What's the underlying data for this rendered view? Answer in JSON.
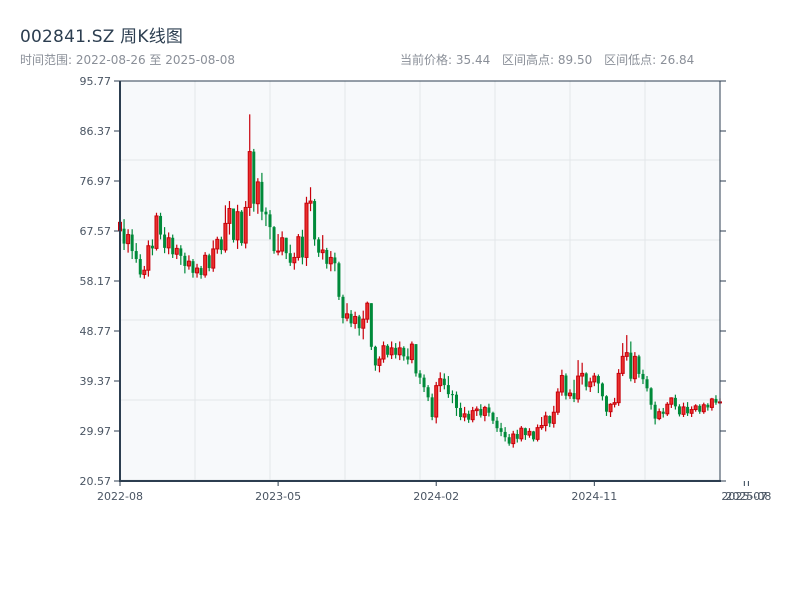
{
  "header": {
    "title": "002841.SZ 周K线图",
    "range_label": "时间范围: 2022-08-26 至 2025-08-08",
    "current_price": "当前价格: 35.44",
    "period_high": "区间高点: 89.50",
    "period_low": "区间低点: 26.84"
  },
  "colors": {
    "up_border": "#c8000a",
    "up_fill": "#e8302e",
    "down": "#008a3a",
    "axis": "#2c3e50",
    "grid": "#e3e6ea",
    "plot_bg": "#f7f9fb"
  },
  "chart_data": {
    "type": "candlestick",
    "title": "002841.SZ 周K线图",
    "subtitle": "时间范围: 2022-08-26 至 2025-08-08",
    "xlabel": "",
    "ylabel": "",
    "ylim": [
      20.57,
      95.77
    ],
    "y_ticks": [
      "95.77",
      "86.37",
      "76.97",
      "67.57",
      "58.17",
      "48.77",
      "39.37",
      "29.97",
      "20.57"
    ],
    "x_ticks": [
      "2022-08",
      "2023-05",
      "2024-02",
      "2024-11",
      "2025-07",
      "2025-08"
    ],
    "x_tick_positions": [
      0,
      39,
      78,
      117,
      154,
      155
    ],
    "legend": [],
    "grid": true,
    "summary": {
      "current": 35.44,
      "high": 89.5,
      "low": 26.84
    },
    "candles": [
      [
        67.6,
        69.2,
        65.0,
        69.8
      ],
      [
        68.0,
        65.2,
        64.0,
        69.8
      ],
      [
        65.2,
        66.9,
        63.5,
        67.9
      ],
      [
        66.9,
        63.8,
        62.3,
        67.9
      ],
      [
        63.8,
        62.3,
        61.6,
        65.3
      ],
      [
        62.3,
        59.4,
        58.8,
        63.2
      ],
      [
        59.4,
        60.2,
        58.6,
        61.0
      ],
      [
        60.2,
        64.8,
        59.0,
        65.8
      ],
      [
        64.8,
        64.3,
        63.0,
        66.0
      ],
      [
        64.3,
        70.4,
        63.9,
        71.0
      ],
      [
        70.4,
        66.9,
        66.0,
        71.0
      ],
      [
        66.9,
        64.4,
        63.4,
        68.3
      ],
      [
        64.4,
        66.3,
        63.2,
        67.3
      ],
      [
        66.3,
        63.2,
        62.5,
        66.9
      ],
      [
        63.2,
        64.3,
        62.3,
        65.0
      ],
      [
        64.3,
        62.9,
        61.2,
        64.9
      ],
      [
        62.9,
        61.0,
        59.6,
        63.5
      ],
      [
        61.0,
        61.9,
        60.3,
        63.0
      ],
      [
        61.9,
        59.7,
        58.8,
        62.3
      ],
      [
        59.7,
        60.6,
        58.8,
        61.4
      ],
      [
        60.6,
        59.3,
        58.6,
        61.0
      ],
      [
        59.3,
        63.0,
        58.8,
        63.6
      ],
      [
        63.0,
        60.6,
        60.0,
        63.3
      ],
      [
        60.6,
        64.2,
        59.9,
        65.8
      ],
      [
        64.2,
        66.0,
        63.3,
        66.5
      ],
      [
        66.0,
        64.0,
        63.2,
        66.5
      ],
      [
        64.0,
        69.0,
        63.5,
        72.4
      ],
      [
        69.0,
        71.8,
        66.9,
        73.2
      ],
      [
        71.8,
        65.9,
        65.4,
        71.8
      ],
      [
        65.9,
        71.2,
        64.2,
        72.5
      ],
      [
        71.2,
        65.3,
        64.8,
        71.5
      ],
      [
        65.3,
        72.0,
        64.3,
        73.2
      ],
      [
        72.0,
        82.5,
        70.4,
        89.5
      ],
      [
        82.5,
        72.7,
        71.2,
        83.0
      ],
      [
        72.7,
        76.8,
        70.8,
        77.5
      ],
      [
        76.8,
        71.2,
        69.6,
        78.5
      ],
      [
        71.2,
        70.7,
        68.5,
        72.0
      ],
      [
        70.7,
        68.3,
        66.0,
        71.5
      ],
      [
        68.3,
        63.8,
        63.3,
        68.5
      ],
      [
        63.8,
        63.8,
        63.0,
        67.0
      ],
      [
        63.8,
        66.3,
        63.0,
        67.5
      ],
      [
        66.3,
        63.4,
        62.3,
        66.3
      ],
      [
        63.4,
        61.6,
        61.0,
        65.0
      ],
      [
        61.6,
        62.6,
        60.3,
        63.5
      ],
      [
        62.6,
        66.5,
        62.0,
        67.0
      ],
      [
        66.5,
        62.6,
        61.3,
        67.8
      ],
      [
        62.6,
        72.8,
        61.0,
        74.0
      ],
      [
        72.8,
        73.2,
        71.3,
        75.8
      ],
      [
        73.2,
        66.0,
        64.8,
        73.6
      ],
      [
        66.0,
        63.5,
        62.7,
        66.4
      ],
      [
        63.5,
        64.0,
        62.2,
        66.8
      ],
      [
        64.0,
        61.4,
        60.5,
        64.4
      ],
      [
        61.4,
        62.6,
        60.0,
        63.8
      ],
      [
        62.6,
        61.5,
        60.0,
        63.5
      ],
      [
        61.5,
        55.2,
        54.6,
        61.8
      ],
      [
        55.2,
        51.2,
        50.2,
        55.6
      ],
      [
        51.2,
        52.0,
        50.6,
        54.0
      ],
      [
        52.0,
        50.2,
        49.5,
        52.7
      ],
      [
        50.2,
        51.5,
        49.2,
        52.4
      ],
      [
        51.5,
        49.3,
        47.9,
        51.8
      ],
      [
        49.3,
        51.0,
        47.2,
        52.6
      ],
      [
        51.0,
        54.0,
        50.3,
        54.3
      ],
      [
        54.0,
        45.8,
        45.2,
        54.0
      ],
      [
        45.8,
        42.3,
        41.3,
        46.0
      ],
      [
        42.3,
        43.5,
        41.0,
        44.0
      ],
      [
        43.5,
        46.0,
        42.8,
        46.8
      ],
      [
        46.0,
        44.3,
        43.8,
        46.3
      ],
      [
        44.3,
        45.6,
        43.5,
        46.8
      ],
      [
        45.6,
        44.3,
        43.6,
        46.5
      ],
      [
        44.3,
        45.6,
        43.3,
        46.8
      ],
      [
        45.6,
        44.0,
        43.2,
        45.9
      ],
      [
        44.0,
        43.4,
        42.5,
        45.5
      ],
      [
        43.4,
        46.3,
        42.7,
        46.8
      ],
      [
        46.3,
        40.8,
        40.2,
        46.3
      ],
      [
        40.8,
        40.0,
        38.8,
        41.4
      ],
      [
        40.0,
        38.2,
        37.3,
        40.6
      ],
      [
        38.2,
        36.3,
        35.6,
        38.6
      ],
      [
        36.3,
        32.6,
        32.0,
        37.0
      ],
      [
        32.6,
        38.5,
        31.4,
        39.2
      ],
      [
        38.5,
        39.8,
        37.3,
        41.0
      ],
      [
        39.8,
        38.6,
        37.8,
        40.8
      ],
      [
        38.6,
        36.9,
        36.2,
        40.3
      ],
      [
        36.9,
        36.8,
        35.2,
        37.6
      ],
      [
        36.8,
        34.3,
        32.8,
        37.4
      ],
      [
        34.3,
        32.6,
        32.0,
        35.3
      ],
      [
        32.6,
        33.2,
        31.8,
        34.5
      ],
      [
        33.2,
        32.1,
        31.5,
        33.8
      ],
      [
        32.1,
        33.8,
        31.6,
        34.5
      ],
      [
        33.8,
        34.1,
        32.8,
        34.6
      ],
      [
        34.1,
        32.9,
        32.5,
        35.0
      ],
      [
        32.9,
        34.4,
        31.8,
        34.7
      ],
      [
        34.4,
        33.4,
        32.7,
        35.1
      ],
      [
        33.4,
        31.9,
        31.3,
        33.6
      ],
      [
        31.9,
        30.5,
        29.8,
        32.6
      ],
      [
        30.5,
        29.8,
        29.0,
        31.5
      ],
      [
        29.8,
        28.8,
        28.0,
        30.7
      ],
      [
        28.8,
        27.6,
        27.2,
        29.4
      ],
      [
        27.6,
        29.4,
        26.84,
        30.0
      ],
      [
        29.4,
        28.5,
        27.8,
        30.2
      ],
      [
        28.5,
        30.5,
        28.0,
        30.9
      ],
      [
        30.5,
        29.2,
        28.3,
        30.6
      ],
      [
        29.2,
        29.9,
        28.7,
        30.5
      ],
      [
        29.9,
        28.4,
        28.0,
        30.0
      ],
      [
        28.4,
        30.6,
        28.0,
        31.2
      ],
      [
        30.6,
        31.0,
        30.2,
        32.6
      ],
      [
        31.0,
        32.8,
        29.9,
        33.6
      ],
      [
        32.8,
        31.4,
        30.7,
        32.9
      ],
      [
        31.4,
        33.5,
        30.6,
        34.7
      ],
      [
        33.5,
        37.3,
        33.0,
        38.0
      ],
      [
        37.3,
        40.4,
        36.6,
        41.5
      ],
      [
        40.4,
        36.6,
        35.9,
        40.8
      ],
      [
        36.6,
        37.1,
        36.0,
        37.8
      ],
      [
        37.1,
        36.0,
        35.4,
        39.6
      ],
      [
        36.0,
        40.3,
        35.3,
        43.3
      ],
      [
        40.3,
        40.8,
        38.7,
        42.8
      ],
      [
        40.8,
        38.3,
        37.6,
        41.0
      ],
      [
        38.3,
        39.2,
        37.3,
        40.0
      ],
      [
        39.2,
        40.3,
        38.4,
        40.9
      ],
      [
        40.3,
        38.9,
        37.1,
        40.6
      ],
      [
        38.9,
        36.5,
        35.7,
        39.1
      ],
      [
        36.5,
        33.6,
        32.8,
        36.7
      ],
      [
        33.6,
        35.0,
        32.6,
        35.2
      ],
      [
        35.0,
        35.3,
        34.4,
        36.2
      ],
      [
        35.3,
        40.8,
        34.7,
        41.6
      ],
      [
        40.8,
        44.0,
        40.3,
        46.5
      ],
      [
        44.0,
        44.7,
        43.2,
        48.0
      ],
      [
        44.7,
        39.8,
        39.3,
        46.8
      ],
      [
        39.8,
        44.0,
        39.0,
        44.8
      ],
      [
        44.0,
        40.7,
        40.0,
        44.3
      ],
      [
        40.7,
        39.7,
        38.8,
        41.5
      ],
      [
        39.7,
        38.0,
        37.4,
        40.3
      ],
      [
        38.0,
        34.9,
        34.0,
        38.2
      ],
      [
        34.9,
        32.3,
        31.2,
        35.5
      ],
      [
        32.3,
        33.6,
        32.0,
        34.2
      ],
      [
        33.6,
        33.2,
        32.5,
        34.3
      ],
      [
        33.2,
        35.0,
        32.8,
        35.4
      ],
      [
        35.0,
        36.2,
        34.3,
        36.3
      ],
      [
        36.2,
        34.6,
        34.0,
        36.8
      ],
      [
        34.6,
        33.1,
        32.7,
        35.0
      ],
      [
        33.1,
        34.5,
        32.6,
        35.3
      ],
      [
        34.5,
        33.3,
        32.8,
        35.4
      ],
      [
        33.3,
        34.0,
        32.6,
        34.6
      ],
      [
        34.0,
        34.7,
        33.6,
        35.0
      ],
      [
        34.7,
        33.6,
        33.2,
        35.0
      ],
      [
        33.6,
        34.9,
        33.2,
        35.3
      ],
      [
        34.9,
        34.4,
        33.8,
        35.2
      ],
      [
        34.4,
        36.0,
        33.8,
        36.2
      ],
      [
        36.0,
        35.3,
        34.9,
        36.7
      ],
      [
        35.3,
        35.44,
        35.0,
        36.1
      ]
    ]
  }
}
